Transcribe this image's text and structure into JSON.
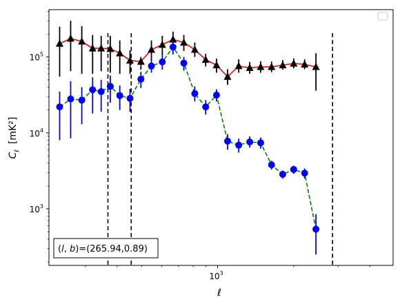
{
  "chart_data": {
    "type": "line",
    "xlabel": "ℓ",
    "ylabel_main": "C",
    "ylabel_sub": "ℓ",
    "ylabel_unit": "[mK²]",
    "xscale": "log",
    "yscale": "log",
    "xlim": [
      215,
      4950
    ],
    "ylim": [
      180,
      420000
    ],
    "x_ticks": [
      {
        "value": 1000,
        "base": "10",
        "exp": "3"
      }
    ],
    "y_ticks": [
      {
        "value": 1000,
        "base": "10",
        "exp": "3"
      },
      {
        "value": 10000,
        "base": "10",
        "exp": "4"
      },
      {
        "value": 100000,
        "base": "10",
        "exp": "5"
      }
    ],
    "annotation": "(l, b)=(265.94,0.89)",
    "annotation_parts": {
      "prefix": "(",
      "l": "l",
      "sep": ", ",
      "b": "b",
      "suffix": ")=(265.94,0.89)"
    },
    "legend": {
      "placement": "top-right",
      "entries": []
    },
    "vlines": [
      368,
      455,
      2850
    ],
    "series": [
      {
        "color": "#ff0000",
        "linestyle": "solid",
        "marker": "triangle",
        "marker_color": "#000000",
        "errorbar_color": "#000000",
        "points": [
          {
            "x": 237,
            "y": 150000,
            "lo": 55000,
            "hi": 250000
          },
          {
            "x": 262,
            "y": 175000,
            "lo": 65000,
            "hi": 300000
          },
          {
            "x": 290,
            "y": 160000,
            "lo": 60000,
            "hi": 255000
          },
          {
            "x": 320,
            "y": 130000,
            "lo": 60000,
            "hi": 195000
          },
          {
            "x": 346,
            "y": 130000,
            "lo": 65000,
            "hi": 190000
          },
          {
            "x": 376,
            "y": 128000,
            "lo": 62000,
            "hi": 190000
          },
          {
            "x": 410,
            "y": 112000,
            "lo": 60000,
            "hi": 165000
          },
          {
            "x": 450,
            "y": 90000,
            "lo": 60000,
            "hi": 122000
          },
          {
            "x": 497,
            "y": 87000,
            "lo": 68000,
            "hi": 100000
          },
          {
            "x": 547,
            "y": 125000,
            "lo": 90000,
            "hi": 165000
          },
          {
            "x": 604,
            "y": 145000,
            "lo": 105000,
            "hi": 190000
          },
          {
            "x": 666,
            "y": 170000,
            "lo": 125000,
            "hi": 215000
          },
          {
            "x": 735,
            "y": 155000,
            "lo": 120000,
            "hi": 195000
          },
          {
            "x": 812,
            "y": 125000,
            "lo": 100000,
            "hi": 155000
          },
          {
            "x": 897,
            "y": 92000,
            "lo": 75000,
            "hi": 110000
          },
          {
            "x": 990,
            "y": 78000,
            "lo": 62000,
            "hi": 95000
          },
          {
            "x": 1095,
            "y": 55000,
            "lo": 43000,
            "hi": 69000
          },
          {
            "x": 1212,
            "y": 76000,
            "lo": 62000,
            "hi": 93000
          },
          {
            "x": 1340,
            "y": 72000,
            "lo": 60000,
            "hi": 86000
          },
          {
            "x": 1480,
            "y": 74000,
            "lo": 62000,
            "hi": 88000
          },
          {
            "x": 1635,
            "y": 74000,
            "lo": 63000,
            "hi": 87000
          },
          {
            "x": 1810,
            "y": 78000,
            "lo": 68000,
            "hi": 91000
          },
          {
            "x": 2000,
            "y": 82000,
            "lo": 71000,
            "hi": 96000
          },
          {
            "x": 2210,
            "y": 80000,
            "lo": 69000,
            "hi": 93000
          },
          {
            "x": 2450,
            "y": 74000,
            "lo": 36000,
            "hi": 112000
          }
        ]
      },
      {
        "color": "#008000",
        "linestyle": "dashed",
        "marker": "circle",
        "marker_color": "#0000ff",
        "errorbar_color": "#0000ff",
        "points": [
          {
            "x": 237,
            "y": 22000,
            "lo": 8000,
            "hi": 35000
          },
          {
            "x": 262,
            "y": 28000,
            "lo": 8500,
            "hi": 48000
          },
          {
            "x": 290,
            "y": 27000,
            "lo": 13000,
            "hi": 40000
          },
          {
            "x": 320,
            "y": 37000,
            "lo": 18000,
            "hi": 54000
          },
          {
            "x": 346,
            "y": 35000,
            "lo": 19000,
            "hi": 50000
          },
          {
            "x": 376,
            "y": 41000,
            "lo": 25000,
            "hi": 57000
          },
          {
            "x": 410,
            "y": 31000,
            "lo": 20000,
            "hi": 42000
          },
          {
            "x": 450,
            "y": 28500,
            "lo": 19000,
            "hi": 38000
          },
          {
            "x": 497,
            "y": 51000,
            "lo": 39000,
            "hi": 64000
          },
          {
            "x": 547,
            "y": 76000,
            "lo": 62000,
            "hi": 92000
          },
          {
            "x": 604,
            "y": 86000,
            "lo": 68000,
            "hi": 105000
          },
          {
            "x": 666,
            "y": 135000,
            "lo": 108000,
            "hi": 162000
          },
          {
            "x": 735,
            "y": 83000,
            "lo": 66000,
            "hi": 100000
          },
          {
            "x": 812,
            "y": 33000,
            "lo": 26000,
            "hi": 41000
          },
          {
            "x": 897,
            "y": 22000,
            "lo": 17500,
            "hi": 27000
          },
          {
            "x": 990,
            "y": 31500,
            "lo": 26000,
            "hi": 37500
          },
          {
            "x": 1095,
            "y": 7800,
            "lo": 6000,
            "hi": 9600
          },
          {
            "x": 1212,
            "y": 6900,
            "lo": 5500,
            "hi": 8400
          },
          {
            "x": 1340,
            "y": 7600,
            "lo": 6400,
            "hi": 9000
          },
          {
            "x": 1480,
            "y": 7400,
            "lo": 6200,
            "hi": 8700
          },
          {
            "x": 1635,
            "y": 3800,
            "lo": 3300,
            "hi": 4300
          },
          {
            "x": 1810,
            "y": 2850,
            "lo": 2500,
            "hi": 3200
          },
          {
            "x": 2000,
            "y": 3300,
            "lo": 2900,
            "hi": 3700
          },
          {
            "x": 2210,
            "y": 2950,
            "lo": 2500,
            "hi": 3400
          },
          {
            "x": 2450,
            "y": 540,
            "lo": 250,
            "hi": 850
          }
        ]
      }
    ]
  }
}
